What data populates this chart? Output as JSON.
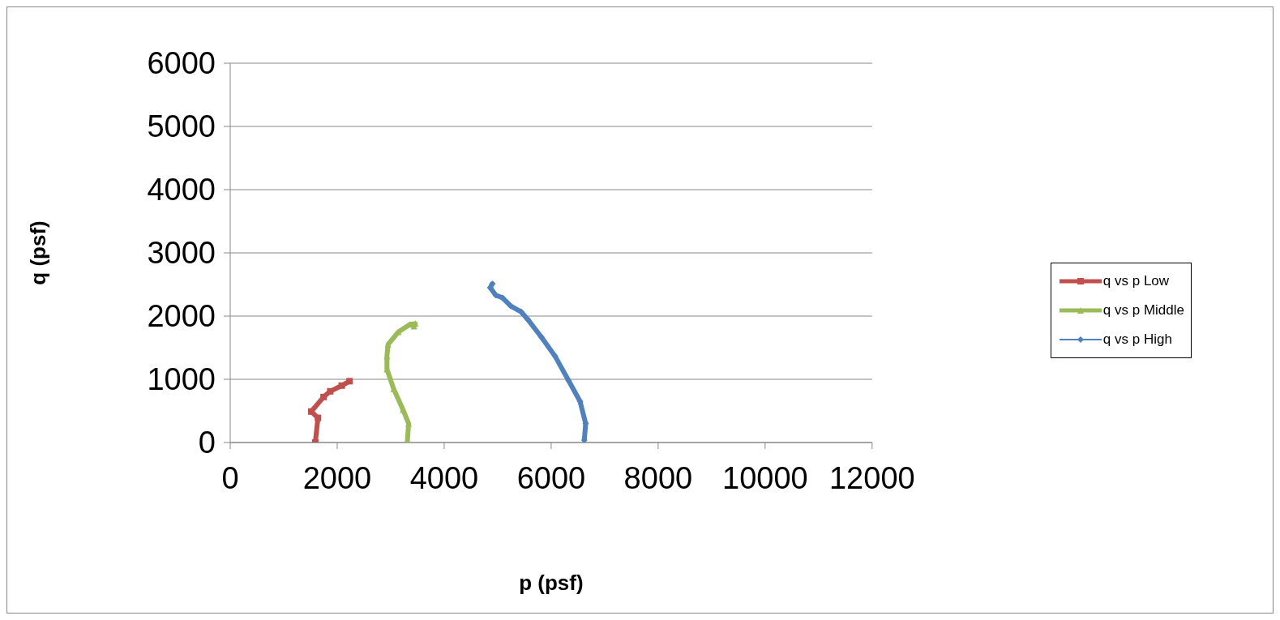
{
  "chart_data": {
    "type": "line",
    "xlabel": "p (psf)",
    "ylabel": "q (psf)",
    "xlim": [
      0,
      12000
    ],
    "xticks": [
      0,
      2000,
      4000,
      6000,
      8000,
      10000,
      12000
    ],
    "ylim": [
      0,
      6000
    ],
    "yticks": [
      0,
      1000,
      2000,
      3000,
      4000,
      5000,
      6000
    ],
    "grid": "y",
    "legend": "right",
    "line_style": "solid",
    "series": [
      {
        "name": "q vs p Low",
        "color": "#c0504d",
        "marker": "square",
        "x": [
          1590,
          1640,
          1515,
          1745,
          1870,
          2085,
          2230
        ],
        "values": [
          0,
          390,
          490,
          720,
          810,
          900,
          970
        ]
      },
      {
        "name": "q vs p Middle",
        "color": "#9bbb59",
        "marker": "triangle",
        "x": [
          3310,
          3335,
          3230,
          3055,
          2930,
          2930,
          2950,
          3145,
          3360,
          3460,
          3435
        ],
        "values": [
          0,
          300,
          520,
          850,
          1160,
          1370,
          1550,
          1750,
          1870,
          1880,
          1840
        ]
      },
      {
        "name": "q vs p High",
        "color": "#4f81bd",
        "marker": "diamond",
        "x": [
          6620,
          6645,
          6540,
          6325,
          6070,
          5815,
          5560,
          5435,
          5245,
          5090,
          4965,
          4860,
          4900
        ],
        "values": [
          40,
          300,
          650,
          980,
          1370,
          1670,
          1950,
          2070,
          2160,
          2290,
          2330,
          2450,
          2510
        ]
      }
    ]
  }
}
